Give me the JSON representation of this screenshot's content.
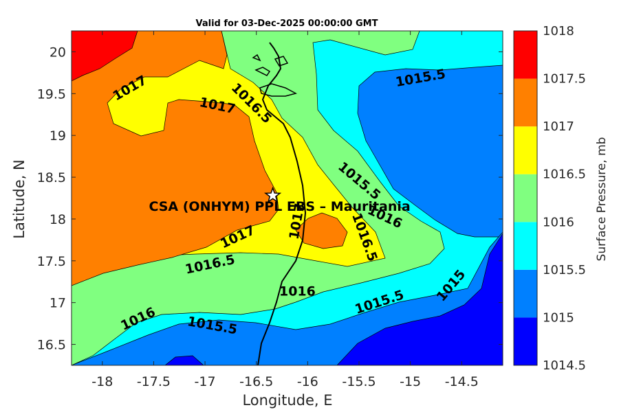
{
  "title": "Valid for 03-Dec-2025 00:00:00 GMT",
  "chart_data": {
    "type": "contour_map",
    "xlabel": "Longitude, E",
    "ylabel": "Latitude, N",
    "xlim": [
      -18.3,
      -14.1
    ],
    "ylim": [
      16.25,
      20.25
    ],
    "x_ticks": [
      -18,
      -17.5,
      -17,
      -16.5,
      -16,
      -15.5,
      -15,
      -14.5
    ],
    "x_tick_labels": [
      "-18",
      "-17.5",
      "-17",
      "-16.5",
      "-16",
      "-15.5",
      "-15",
      "-14.5"
    ],
    "y_ticks": [
      16.5,
      17,
      17.5,
      18,
      18.5,
      19,
      19.5,
      20
    ],
    "y_tick_labels": [
      "16.5",
      "17",
      "17.5",
      "18",
      "18.5",
      "19",
      "19.5",
      "20"
    ],
    "colorbar": {
      "label": "Surface Pressure, mb",
      "levels": [
        1014.5,
        1015,
        1015.5,
        1016,
        1016.5,
        1017,
        1017.5,
        1018
      ],
      "level_labels": [
        "1014.5",
        "1015",
        "1015.5",
        "1016",
        "1016.5",
        "1017",
        "1017.5",
        "1018"
      ],
      "colors": [
        "#0000ff",
        "#0080ff",
        "#00ffff",
        "#80ff80",
        "#ffff00",
        "#ff8000",
        "#ff0000",
        "#800000"
      ]
    },
    "contour_labels": [
      {
        "text": "1017",
        "lon": -17.73,
        "lat": 19.56,
        "angle": -30
      },
      {
        "text": "1017",
        "lon": -16.88,
        "lat": 19.35,
        "angle": 12
      },
      {
        "text": "1016.5",
        "lon": -16.55,
        "lat": 19.38,
        "angle": 45
      },
      {
        "text": "1017",
        "lon": -16.68,
        "lat": 17.78,
        "angle": -25
      },
      {
        "text": "1017",
        "lon": -16.1,
        "lat": 17.97,
        "angle": -80
      },
      {
        "text": "1016.5",
        "lon": -16.95,
        "lat": 17.45,
        "angle": -12
      },
      {
        "text": "1016.5",
        "lon": -15.45,
        "lat": 17.78,
        "angle": 70
      },
      {
        "text": "1016",
        "lon": -16.1,
        "lat": 17.13,
        "angle": 0
      },
      {
        "text": "1016",
        "lon": -15.25,
        "lat": 18.02,
        "angle": 25
      },
      {
        "text": "1016",
        "lon": -17.65,
        "lat": 16.8,
        "angle": -25
      },
      {
        "text": "1015.5",
        "lon": -15.5,
        "lat": 18.45,
        "angle": 40
      },
      {
        "text": "1015.5",
        "lon": -14.9,
        "lat": 19.68,
        "angle": -10
      },
      {
        "text": "1015.5",
        "lon": -16.93,
        "lat": 16.72,
        "angle": 10
      },
      {
        "text": "1015.5",
        "lon": -15.3,
        "lat": 17.0,
        "angle": -18
      },
      {
        "text": "1015",
        "lon": -14.6,
        "lat": 17.2,
        "angle": -50
      }
    ],
    "station": {
      "name": "CSA (ONHYM) PPL EBS  – Mauritania",
      "lon": -16.34,
      "lat": 18.28
    }
  }
}
